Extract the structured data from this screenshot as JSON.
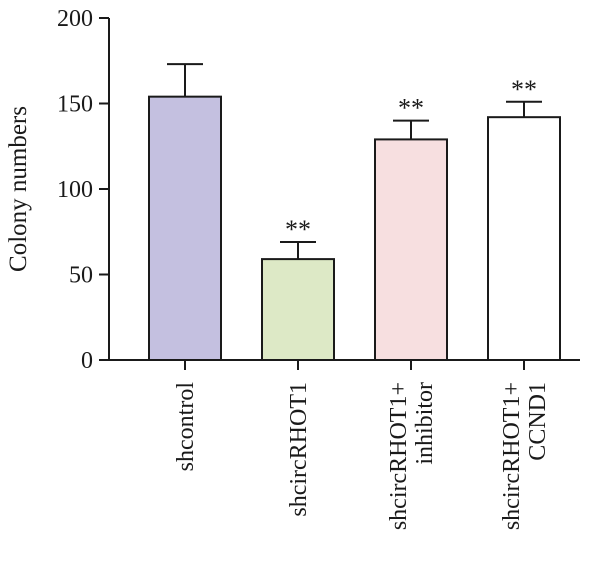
{
  "chart_data": {
    "type": "bar",
    "title": "",
    "xlabel": "",
    "ylabel": "Colony numbers",
    "ylim": [
      0,
      200
    ],
    "yticks": [
      0,
      50,
      100,
      150,
      200
    ],
    "grid": false,
    "categories": [
      [
        "shcontrol"
      ],
      [
        "shcircRHOT1"
      ],
      [
        "shcircRHOT1+",
        "inhibitor"
      ],
      [
        "shcircRHOT1+",
        "CCND1"
      ]
    ],
    "values": [
      154,
      59,
      129,
      142
    ],
    "errors": [
      19,
      10,
      11,
      9
    ],
    "significance": [
      "",
      "**",
      "**",
      "**"
    ],
    "colors": [
      "#c4c0e0",
      "#dde9c6",
      "#f7dfe0",
      "#ffffff"
    ]
  }
}
